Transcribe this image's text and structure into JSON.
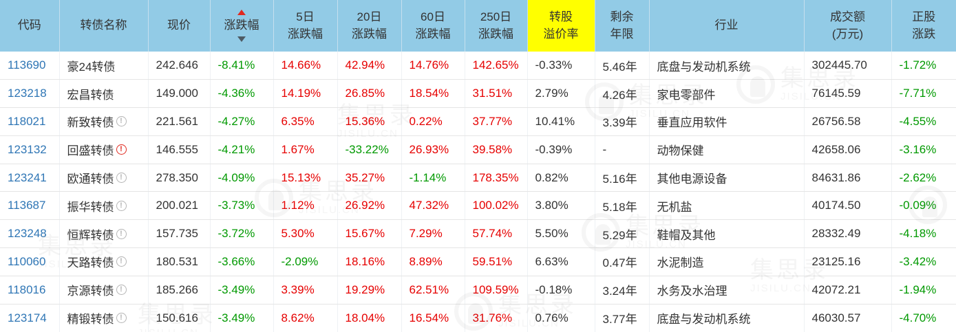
{
  "colors": {
    "up": "#e60000",
    "down": "#009900",
    "code_link": "#2f76b5",
    "header_bg": "#92cbe6",
    "premium_header_bg": "#ffff00"
  },
  "watermark": {
    "brand": "集思录",
    "domain": "JISILU.CN"
  },
  "table": {
    "columns": [
      {
        "label": "代码"
      },
      {
        "label": "转债名称"
      },
      {
        "label": "现价"
      },
      {
        "label": "涨跌幅",
        "sortable": true
      },
      {
        "line1": "5日",
        "line2": "涨跌幅"
      },
      {
        "line1": "20日",
        "line2": "涨跌幅"
      },
      {
        "line1": "60日",
        "line2": "涨跌幅"
      },
      {
        "line1": "250日",
        "line2": "涨跌幅"
      },
      {
        "line1": "转股",
        "line2": "溢价率",
        "highlight": true
      },
      {
        "line1": "剩余",
        "line2": "年限"
      },
      {
        "label": "行业"
      },
      {
        "line1": "成交额",
        "line2": "(万元)"
      },
      {
        "line1": "正股",
        "line2": "涨跌"
      }
    ],
    "rows": [
      {
        "code": "113690",
        "name": "豪24转债",
        "alert": "none",
        "price": "242.646",
        "chg": "-8.41%",
        "chg5": "14.66%",
        "chg20": "42.94%",
        "chg60": "14.76%",
        "chg250": "142.65%",
        "premium": "-0.33%",
        "years": "5.46年",
        "industry": "底盘与发动机系统",
        "turnover": "302445.70",
        "stock_chg": "-1.72%"
      },
      {
        "code": "123218",
        "name": "宏昌转债",
        "alert": "none",
        "price": "149.000",
        "chg": "-4.36%",
        "chg5": "14.19%",
        "chg20": "26.85%",
        "chg60": "18.54%",
        "chg250": "31.51%",
        "premium": "2.79%",
        "years": "4.26年",
        "industry": "家电零部件",
        "turnover": "76145.59",
        "stock_chg": "-7.71%"
      },
      {
        "code": "118021",
        "name": "新致转债",
        "alert": "gray",
        "price": "221.561",
        "chg": "-4.27%",
        "chg5": "6.35%",
        "chg20": "15.36%",
        "chg60": "0.22%",
        "chg250": "37.77%",
        "premium": "10.41%",
        "years": "3.39年",
        "industry": "垂直应用软件",
        "turnover": "26756.58",
        "stock_chg": "-4.55%"
      },
      {
        "code": "123132",
        "name": "回盛转债",
        "alert": "red",
        "price": "146.555",
        "chg": "-4.21%",
        "chg5": "1.67%",
        "chg20": "-33.22%",
        "chg60": "26.93%",
        "chg250": "39.58%",
        "premium": "-0.39%",
        "years": "-",
        "industry": "动物保健",
        "turnover": "42658.06",
        "stock_chg": "-3.16%"
      },
      {
        "code": "123241",
        "name": "欧通转债",
        "alert": "gray",
        "price": "278.350",
        "chg": "-4.09%",
        "chg5": "15.13%",
        "chg20": "35.27%",
        "chg60": "-1.14%",
        "chg250": "178.35%",
        "premium": "0.82%",
        "years": "5.16年",
        "industry": "其他电源设备",
        "turnover": "84631.86",
        "stock_chg": "-2.62%"
      },
      {
        "code": "113687",
        "name": "振华转债",
        "alert": "gray",
        "price": "200.021",
        "chg": "-3.73%",
        "chg5": "1.12%",
        "chg20": "26.92%",
        "chg60": "47.32%",
        "chg250": "100.02%",
        "premium": "3.80%",
        "years": "5.18年",
        "industry": "无机盐",
        "turnover": "40174.50",
        "stock_chg": "-0.09%"
      },
      {
        "code": "123248",
        "name": "恒辉转债",
        "alert": "gray",
        "price": "157.735",
        "chg": "-3.72%",
        "chg5": "5.30%",
        "chg20": "15.67%",
        "chg60": "7.29%",
        "chg250": "57.74%",
        "premium": "5.50%",
        "years": "5.29年",
        "industry": "鞋帽及其他",
        "turnover": "28332.49",
        "stock_chg": "-4.18%"
      },
      {
        "code": "110060",
        "name": "天路转债",
        "alert": "gray",
        "price": "180.531",
        "chg": "-3.66%",
        "chg5": "-2.09%",
        "chg20": "18.16%",
        "chg60": "8.89%",
        "chg250": "59.51%",
        "premium": "6.63%",
        "years": "0.47年",
        "industry": "水泥制造",
        "turnover": "23125.16",
        "stock_chg": "-3.42%"
      },
      {
        "code": "118016",
        "name": "京源转债",
        "alert": "gray",
        "price": "185.266",
        "chg": "-3.49%",
        "chg5": "3.39%",
        "chg20": "19.29%",
        "chg60": "62.51%",
        "chg250": "109.59%",
        "premium": "-0.18%",
        "years": "3.24年",
        "industry": "水务及水治理",
        "turnover": "42072.21",
        "stock_chg": "-1.94%"
      },
      {
        "code": "123174",
        "name": "精锻转债",
        "alert": "gray",
        "price": "150.616",
        "chg": "-3.49%",
        "chg5": "8.62%",
        "chg20": "18.04%",
        "chg60": "16.54%",
        "chg250": "31.76%",
        "premium": "0.76%",
        "years": "3.77年",
        "industry": "底盘与发动机系统",
        "turnover": "46030.57",
        "stock_chg": "-4.70%"
      }
    ]
  }
}
